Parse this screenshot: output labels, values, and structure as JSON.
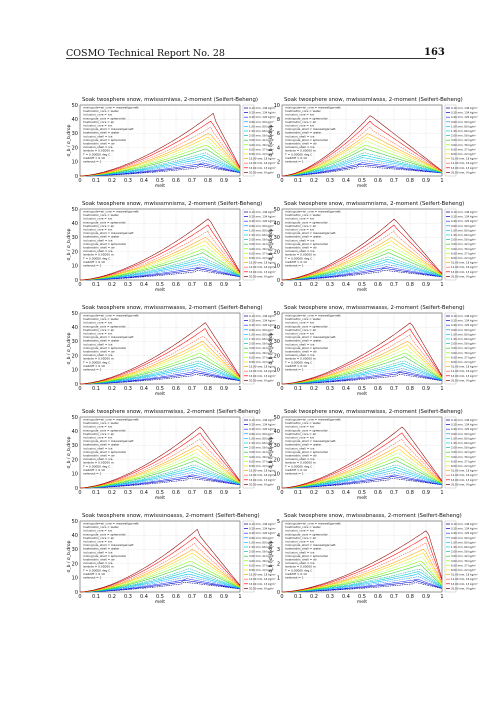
{
  "header": {
    "title": "COSMO Technical Report No. 28",
    "page_number": "163"
  },
  "figure_common": {
    "xlabel": "melt",
    "ylabel": "σ_b / σ_b,drop",
    "x_ticks": [
      "0",
      "0.1",
      "0.2",
      "0.3",
      "0.4",
      "0.5",
      "0.6",
      "0.7",
      "0.8",
      "0.9",
      "1"
    ],
    "left_legend": [
      "mixingrule=wi_core = maxwellgarnett",
      "hostmatrix_core = water",
      "inclusion_core = ice",
      "mixingrule_core = spheroidal",
      "hostmatrix_core = air",
      "inclusion_core = ice",
      "mixingrule_shell = maxwellgarnett",
      "hostmatrix_shell = water",
      "inclusion_shell = ice",
      "mixingrule_shell = spheroidal",
      "hostmatrix_shell = air",
      "inclusion_shell = ice",
      "lambda = 0.05000 m",
      "T = 0.00000 deg C",
      "meltdiff = 0.10",
      "radarout = 1"
    ],
    "right_legend": [
      "0.10 mm, 146 kg/m³",
      "0.20 mm, 134 kg/m³",
      "0.40 mm, 120 kg/m³",
      "0.60 mm, 99 kg/m³",
      "1.00 mm, 80 kg/m³",
      "1.50 mm, 66 kg/m³",
      "2.00 mm, 56 kg/m³",
      "3.00 mm, 42 kg/m³",
      "4.00 mm, 36 kg/m³",
      "6.00 mm, 27 kg/m³",
      "8.00 mm, 22 kg/m³",
      "10.00 mm, 18 kg/m³",
      "12.00 mm, 16 kg/m³",
      "15.00 mm, 13 kg/m³",
      "20.00 mm, 9 kg/m³"
    ]
  },
  "chart_data": [
    {
      "type": "line",
      "title": "Soak twosphere snow, mwisssmiwss, 2-moment (Seifert-Beheng)",
      "ylim": [
        0,
        50
      ],
      "y_ticks": [
        "0",
        "10",
        "20",
        "30",
        "40",
        "50"
      ],
      "peak": 0.82
    },
    {
      "type": "line",
      "title": "Soak twosphere snow, mwisssmiwsss, 2-moment (Seifert-Beheng)",
      "ylim": [
        0,
        10
      ],
      "y_ticks": [
        "0",
        "2",
        "4",
        "6",
        "8",
        "10"
      ],
      "peak": 0.55
    },
    {
      "type": "line",
      "title": "Soak twosphere snow, mwisssmnisms, 2-moment (Seifert-Beheng)",
      "ylim": [
        0,
        50
      ],
      "y_ticks": [
        "0",
        "10",
        "20",
        "30",
        "40",
        "50"
      ],
      "peak": 0.8
    },
    {
      "type": "line",
      "title": "Soak twosphere snow, mwisssmnisms, 2-moment (Seifert-Beheng)",
      "ylim": [
        0,
        50
      ],
      "y_ticks": [
        "0",
        "10",
        "20",
        "30",
        "40",
        "50"
      ],
      "peak": 0.7
    },
    {
      "type": "line",
      "title": "Soak twosphere snow, mwisssmwasss, 2-moment (Seifert-Beheng)",
      "ylim": [
        0,
        50
      ],
      "y_ticks": [
        "0",
        "10",
        "20",
        "30",
        "40",
        "50"
      ],
      "peak": 0.78
    },
    {
      "type": "line",
      "title": "Soak twosphere snow, mwisssmwasss, 2-moment (Seifert-Beheng)",
      "ylim": [
        0,
        50
      ],
      "y_ticks": [
        "0",
        "10",
        "20",
        "30",
        "40",
        "50"
      ],
      "peak": 0.8
    },
    {
      "type": "line",
      "title": "Soak twosphere snow, mwisssmwisss, 2-moment (Seifert-Beheng)",
      "ylim": [
        0,
        50
      ],
      "y_ticks": [
        "0",
        "10",
        "20",
        "30",
        "40",
        "50"
      ],
      "peak": 0.75
    },
    {
      "type": "line",
      "title": "Soak twosphere snow, mwisssmwisss, 2-moment (Seifert-Beheng)",
      "ylim": [
        0,
        50
      ],
      "y_ticks": [
        "0",
        "10",
        "20",
        "30",
        "40",
        "50"
      ],
      "peak": 0.75
    },
    {
      "type": "line",
      "title": "Soak twosphere snow, mwisssnoasss, 2-moment (Seifert-Beheng)",
      "ylim": [
        0,
        50
      ],
      "y_ticks": [
        "0",
        "10",
        "20",
        "30",
        "40",
        "50"
      ],
      "peak": 0.72
    },
    {
      "type": "line",
      "title": "Soak twosphere snow, mwisssbnasss, 2-moment (Seifert-Beheng)",
      "ylim": [
        0,
        5
      ],
      "y_ticks": [
        "0",
        "1",
        "2",
        "3",
        "4",
        "5"
      ],
      "peak": 0.9
    }
  ],
  "series_colors": [
    "#00008b",
    "#0000cd",
    "#1e3cff",
    "#1e90ff",
    "#00bfff",
    "#00ced1",
    "#20b2aa",
    "#32cd32",
    "#7cfc00",
    "#adff2f",
    "#ffd700",
    "#ffa500",
    "#ff6347",
    "#ff0000",
    "#8b0000"
  ],
  "series_amplitude": [
    0.12,
    0.15,
    0.18,
    0.22,
    0.26,
    0.3,
    0.34,
    0.4,
    0.46,
    0.52,
    0.58,
    0.64,
    0.72,
    0.82,
    0.92
  ]
}
